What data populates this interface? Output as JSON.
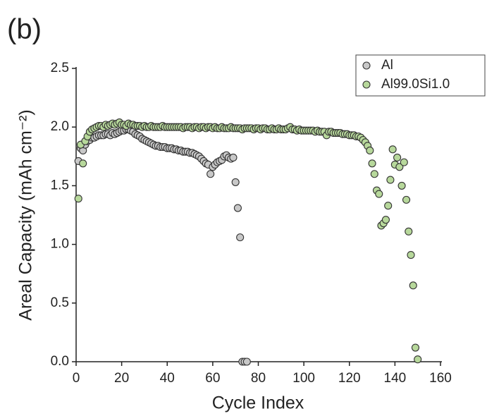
{
  "chart_data": {
    "type": "scatter",
    "title": "(b)",
    "x_label": "Cycle Index",
    "y_label": "Areal Capacity (mAh cm⁻²)",
    "xlim": [
      0,
      160
    ],
    "xticks": [
      0,
      20,
      40,
      60,
      80,
      100,
      120,
      140,
      160
    ],
    "ylim": [
      0,
      2.5
    ],
    "yticks": [
      {
        "value": 0,
        "label": "0.0"
      },
      {
        "value": 0.5,
        "label": "0.5"
      },
      {
        "value": 1,
        "label": "1.0"
      },
      {
        "value": 1.5,
        "label": "1.5"
      },
      {
        "value": 2,
        "label": "2.0"
      },
      {
        "value": 2.5,
        "label": "2.5"
      }
    ],
    "legend": "upper right",
    "series": [
      {
        "name": "Al",
        "color": "#c8c8c8",
        "x": [
          1,
          2,
          3,
          4,
          5,
          6,
          7,
          8,
          9,
          10,
          11,
          12,
          13,
          14,
          15,
          16,
          17,
          18,
          19,
          20,
          21,
          22,
          23,
          24,
          25,
          26,
          27,
          28,
          29,
          30,
          31,
          32,
          33,
          34,
          35,
          36,
          37,
          38,
          39,
          40,
          41,
          42,
          43,
          44,
          45,
          46,
          47,
          48,
          49,
          50,
          51,
          52,
          53,
          54,
          55,
          56,
          57,
          58,
          59,
          60,
          61,
          62,
          63,
          64,
          65,
          66,
          67,
          68,
          69,
          70,
          71,
          72,
          73,
          74,
          75
        ],
        "values": [
          1.71,
          1.82,
          1.8,
          1.85,
          1.88,
          1.89,
          1.91,
          1.91,
          1.92,
          1.93,
          1.93,
          1.93,
          1.94,
          1.94,
          1.93,
          1.95,
          1.94,
          1.95,
          1.96,
          1.97,
          1.97,
          1.98,
          1.98,
          1.97,
          1.96,
          1.94,
          1.93,
          1.92,
          1.9,
          1.89,
          1.88,
          1.87,
          1.86,
          1.85,
          1.84,
          1.84,
          1.83,
          1.83,
          1.83,
          1.82,
          1.82,
          1.82,
          1.81,
          1.81,
          1.8,
          1.8,
          1.79,
          1.79,
          1.79,
          1.78,
          1.78,
          1.77,
          1.76,
          1.75,
          1.73,
          1.71,
          1.69,
          1.68,
          1.6,
          1.66,
          1.68,
          1.7,
          1.71,
          1.72,
          1.75,
          1.76,
          1.74,
          1.73,
          1.74,
          1.53,
          1.31,
          1.06,
          0,
          0,
          0
        ]
      },
      {
        "name": "Al99.0Si1.0",
        "color": "#b7d89b",
        "x": [
          1,
          2,
          3,
          4,
          5,
          6,
          7,
          8,
          9,
          10,
          11,
          12,
          13,
          14,
          15,
          16,
          17,
          18,
          19,
          20,
          21,
          22,
          23,
          24,
          25,
          26,
          27,
          28,
          29,
          30,
          31,
          32,
          33,
          34,
          35,
          36,
          37,
          38,
          39,
          40,
          41,
          42,
          43,
          44,
          45,
          46,
          47,
          48,
          49,
          50,
          51,
          52,
          53,
          54,
          55,
          56,
          57,
          58,
          59,
          60,
          61,
          62,
          63,
          64,
          65,
          66,
          67,
          68,
          69,
          70,
          71,
          72,
          73,
          74,
          75,
          76,
          77,
          78,
          79,
          80,
          81,
          82,
          83,
          84,
          85,
          86,
          87,
          88,
          89,
          90,
          91,
          92,
          93,
          94,
          95,
          96,
          97,
          98,
          99,
          100,
          101,
          102,
          103,
          104,
          105,
          106,
          107,
          108,
          109,
          110,
          111,
          112,
          113,
          114,
          115,
          116,
          117,
          118,
          119,
          120,
          121,
          122,
          123,
          124,
          125,
          126,
          127,
          128,
          129,
          130,
          131,
          132,
          133,
          134,
          135,
          136,
          137,
          138,
          139,
          140,
          141,
          142,
          143,
          144,
          145,
          146,
          147,
          148,
          149,
          150
        ],
        "values": [
          1.39,
          1.85,
          1.69,
          1.88,
          1.92,
          1.96,
          1.98,
          1.99,
          2.0,
          2.01,
          2.01,
          2.0,
          2.02,
          2.01,
          2.02,
          2.03,
          2.02,
          2.03,
          2.04,
          2.02,
          2.02,
          2.01,
          2.03,
          2.02,
          2.02,
          2.01,
          2.01,
          2.01,
          2.0,
          2.01,
          2.0,
          2.0,
          2.01,
          2.0,
          2.0,
          2.0,
          2.0,
          2.01,
          2.0,
          2.0,
          2.0,
          2.0,
          2.0,
          2.0,
          2.0,
          2.0,
          1.99,
          2.0,
          2.0,
          2.0,
          1.99,
          2.0,
          2.0,
          1.99,
          2.0,
          2.0,
          1.99,
          2.0,
          2.0,
          1.99,
          2.0,
          1.99,
          1.99,
          2.0,
          1.99,
          1.99,
          1.99,
          2.0,
          1.99,
          1.99,
          1.99,
          1.99,
          1.98,
          1.99,
          1.99,
          1.99,
          1.99,
          1.98,
          1.99,
          1.99,
          1.98,
          1.99,
          1.99,
          1.98,
          1.98,
          1.99,
          1.98,
          1.98,
          1.99,
          1.98,
          1.98,
          1.98,
          1.99,
          2.0,
          1.98,
          1.98,
          1.97,
          1.98,
          1.97,
          1.97,
          1.97,
          1.97,
          1.97,
          1.97,
          1.96,
          1.97,
          1.96,
          1.96,
          1.96,
          1.93,
          1.96,
          1.96,
          1.95,
          1.95,
          1.95,
          1.95,
          1.94,
          1.94,
          1.94,
          1.93,
          1.93,
          1.93,
          1.92,
          1.92,
          1.91,
          1.89,
          1.87,
          1.84,
          1.8,
          1.69,
          1.6,
          1.46,
          1.43,
          1.16,
          1.18,
          1.21,
          1.33,
          1.55,
          1.81,
          1.68,
          1.74,
          1.66,
          1.5,
          1.7,
          1.38,
          1.11,
          0.91,
          0.65,
          0.12,
          0.02
        ]
      }
    ]
  }
}
